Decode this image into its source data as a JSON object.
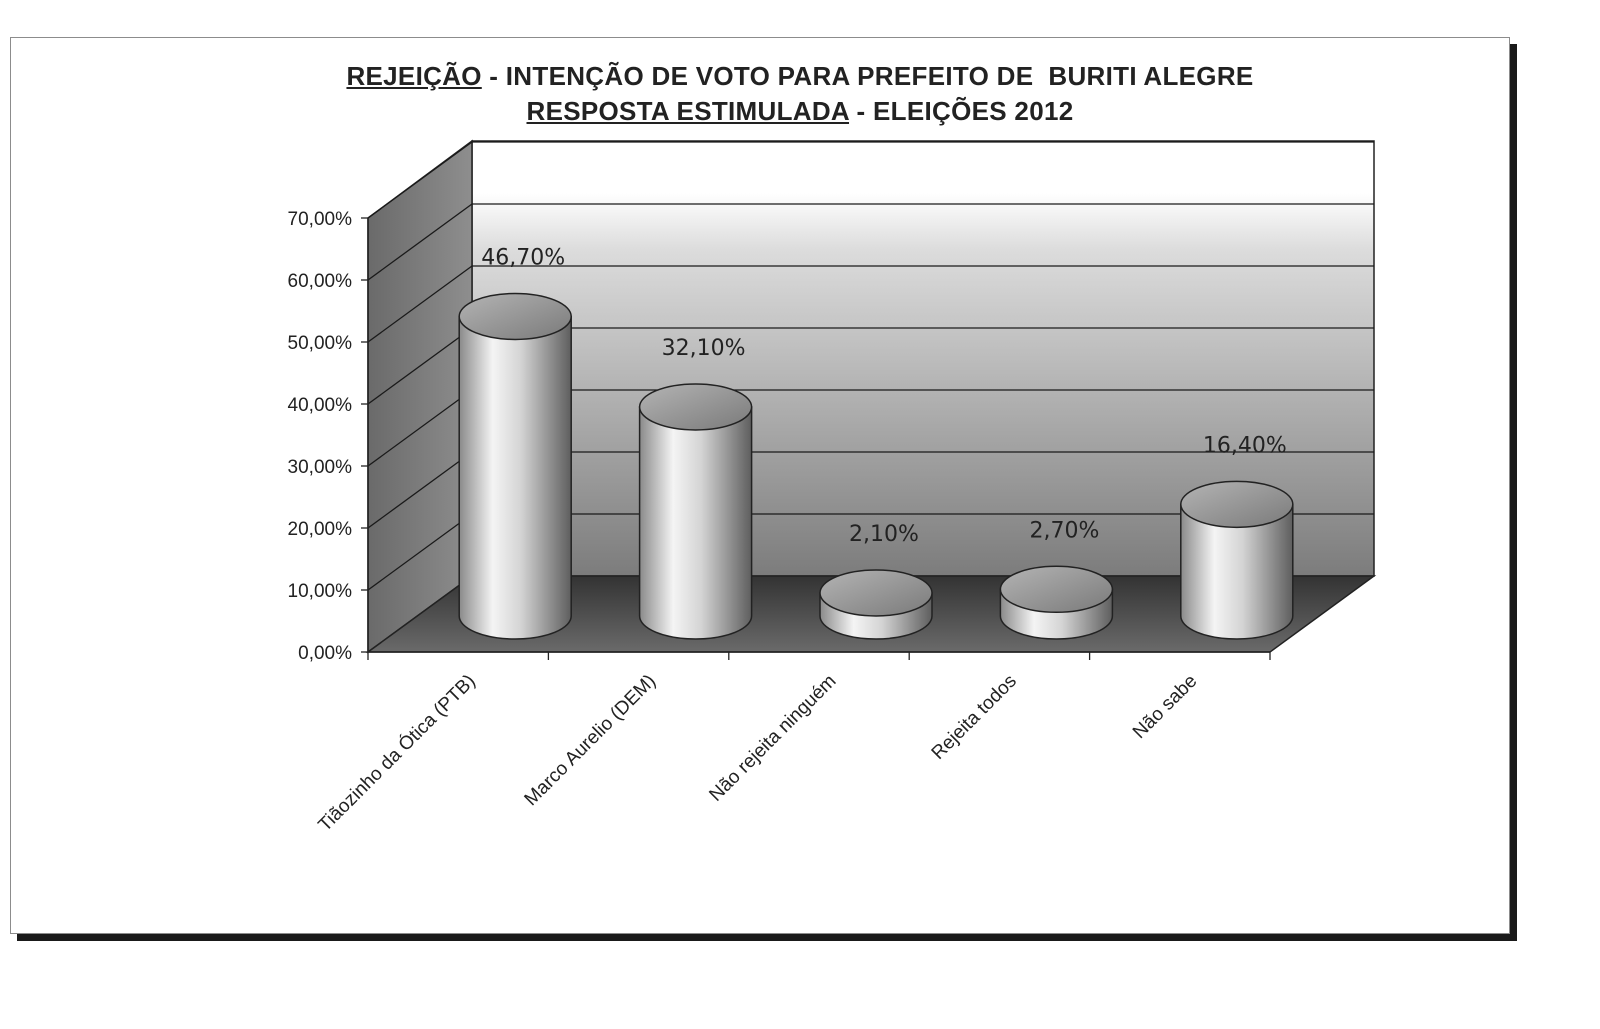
{
  "title": {
    "line1_underlined": "REJEIÇÃO",
    "line1_rest": " - INTENÇÃO DE VOTO PARA PREFEITO DE  BURITI ALEGRE",
    "line2_underlined": "RESPOSTA ESTIMULADA",
    "line2_rest": " - ELEIÇÕES 2012"
  },
  "chart_data": {
    "type": "bar",
    "style": "3d-cylinder",
    "categories": [
      "Tiãozinho da Ótica (PTB)",
      "Marco Aurelio (DEM)",
      "Não rejeita ninguém",
      "Rejeita todos",
      "Não sabe"
    ],
    "values": [
      46.7,
      32.1,
      2.1,
      2.7,
      16.4
    ],
    "data_labels": [
      "46,70%",
      "32,10%",
      "2,10%",
      "2,70%",
      "16,40%"
    ],
    "yticks": [
      "0,00%",
      "10,00%",
      "20,00%",
      "30,00%",
      "40,00%",
      "50,00%",
      "60,00%",
      "70,00%"
    ],
    "ylim": [
      0,
      70
    ],
    "grid": true,
    "legend": "none",
    "colors": {
      "cylinder_light": "#f2f2f2",
      "cylinder_dark": "#6e6e6e",
      "cylinder_top": "#9a9a9a",
      "floor": "#4a4a4a",
      "side_wall": "#7a7a7a",
      "back_wall_light": "#ffffff",
      "back_wall_dark": "#8a8a8a"
    }
  }
}
